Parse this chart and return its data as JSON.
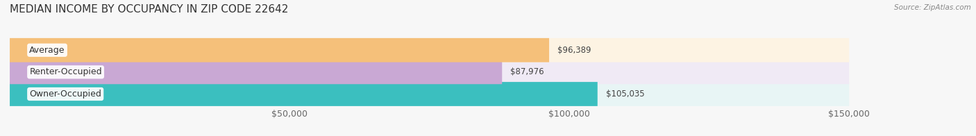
{
  "title": "MEDIAN INCOME BY OCCUPANCY IN ZIP CODE 22642",
  "source": "Source: ZipAtlas.com",
  "categories": [
    "Owner-Occupied",
    "Renter-Occupied",
    "Average"
  ],
  "values": [
    105035,
    87976,
    96389
  ],
  "bar_colors": [
    "#3bbfbf",
    "#c9a8d4",
    "#f5c07a"
  ],
  "bar_background_colors": [
    "#e8f5f5",
    "#f0eaf5",
    "#fdf3e3"
  ],
  "value_labels": [
    "$105,035",
    "$87,976",
    "$96,389"
  ],
  "xlim": [
    0,
    150000
  ],
  "xticks": [
    50000,
    100000,
    150000
  ],
  "xtick_labels": [
    "$50,000",
    "$100,000",
    "$150,000"
  ],
  "background_color": "#f7f7f7",
  "bar_height": 0.55,
  "title_fontsize": 11,
  "label_fontsize": 9,
  "tick_fontsize": 9,
  "value_label_fontsize": 8.5,
  "cat_label_fontsize": 9
}
